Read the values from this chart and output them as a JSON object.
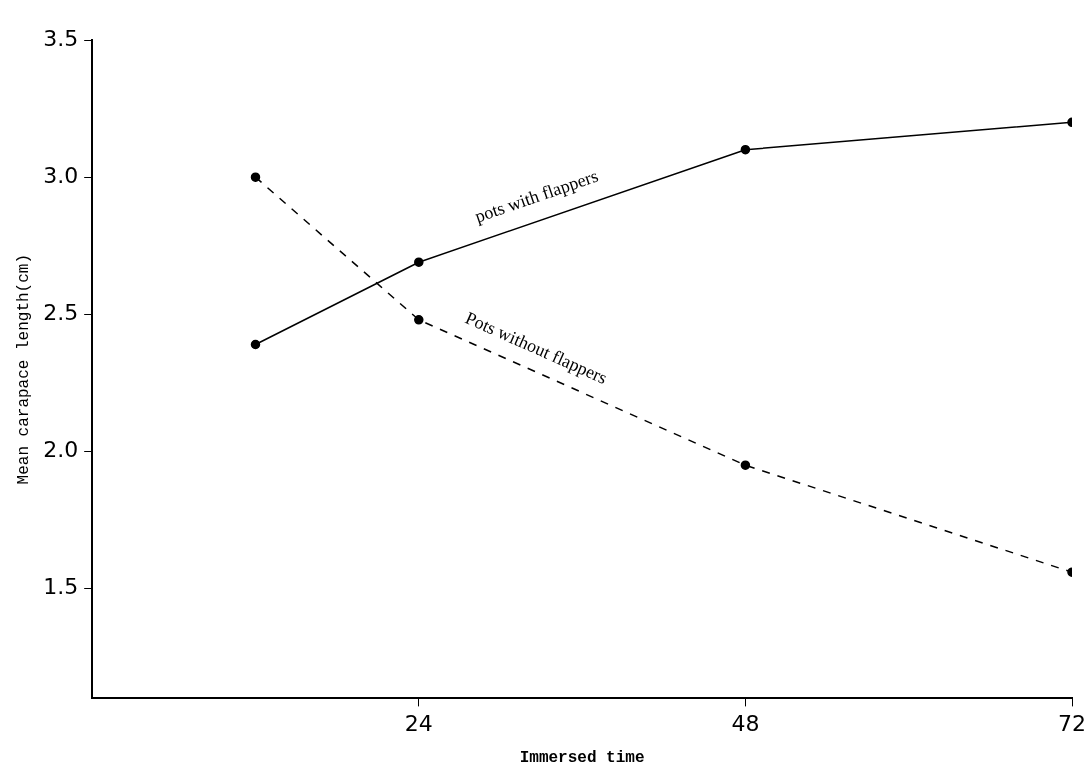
{
  "chart_data": {
    "type": "line",
    "xlabel": "Immersed time",
    "ylabel": "Mean carapace length(cm)",
    "x": [
      12,
      24,
      48,
      72
    ],
    "xlim": [
      0,
      72
    ],
    "xticks": [
      24,
      48,
      72
    ],
    "ylim": [
      1.1,
      3.5
    ],
    "yticks": [
      1.5,
      {
        "value": 2,
        "label": "2.0"
      },
      2.5,
      {
        "value": 3,
        "label": "3.0"
      },
      3.5
    ],
    "marker": "circle",
    "legend": false,
    "grid": false,
    "series": [
      {
        "name": "pots with flappers",
        "color": "#000000",
        "line_style": "solid",
        "values": [
          2.39,
          2.69,
          3.1,
          3.2
        ]
      },
      {
        "name": "Pots without flappers",
        "color": "#000000",
        "line_style": "dashed",
        "values": [
          3.0,
          2.48,
          1.95,
          1.56
        ]
      }
    ]
  }
}
